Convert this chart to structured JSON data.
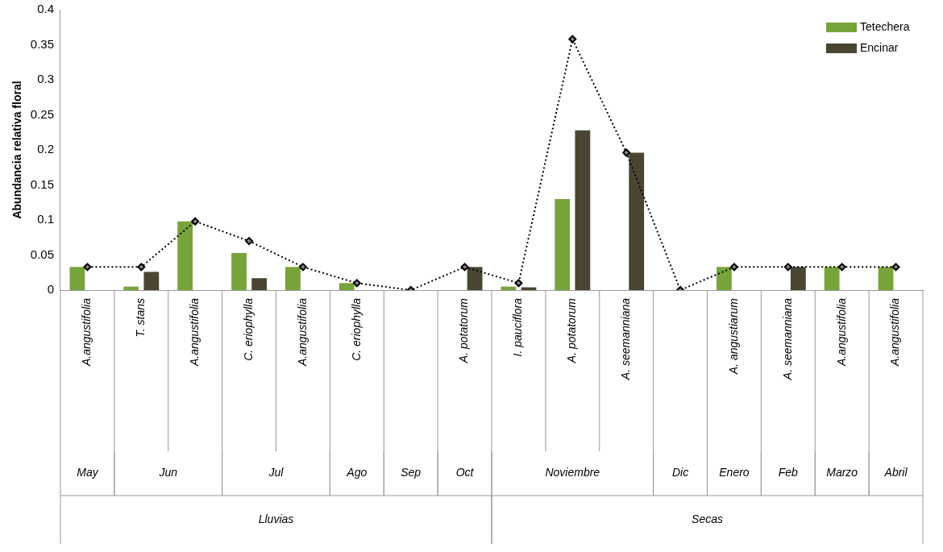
{
  "chart_data": {
    "type": "bar",
    "ylabel": "Abundancia relativa floral",
    "categories": [
      "A.angustifolia",
      "T. stans",
      "A.angustifolia",
      "C. eriophylla",
      "A.angustifolia",
      "C. eriophylla",
      null,
      "A. potatorum",
      "I. pauciflora",
      "A. potatorum",
      "A. seemanniana",
      null,
      "A. angustiarum",
      "A. seemanniana",
      "A.angustifolia",
      "A.angustifolia"
    ],
    "series": [
      {
        "name": "Tetechera",
        "color": "#77a33b",
        "values": [
          0.033,
          0.005,
          0.098,
          0.053,
          0.033,
          0.01,
          null,
          null,
          0.005,
          0.13,
          null,
          null,
          0.033,
          null,
          0.033,
          0.033
        ]
      },
      {
        "name": "Encinar",
        "color": "#4a4533",
        "values": [
          null,
          0.026,
          null,
          0.017,
          null,
          null,
          null,
          0.033,
          0.004,
          0.228,
          0.196,
          null,
          null,
          0.033,
          null,
          null
        ]
      },
      {
        "type": "line",
        "color": "#000000",
        "marker": "diamond",
        "line_style": "dotted",
        "values": [
          0.033,
          0.033,
          0.098,
          0.07,
          0.033,
          0.01,
          0,
          0.033,
          0.01,
          0.358,
          0.196,
          0,
          0.033,
          0.033,
          0.033,
          0.033
        ]
      }
    ],
    "ylim": [
      0,
      0.4
    ],
    "yticks": [
      0,
      0.05,
      0.1,
      0.15,
      0.2,
      0.25,
      0.3,
      0.35,
      0.4
    ],
    "grid": false,
    "legend": "top right",
    "annotations": [
      "May",
      "Jun",
      "Jul",
      "Ago",
      "Sep",
      "Oct",
      "Noviembre",
      "Dic",
      "Enero",
      "Feb",
      "Marzo",
      "Abril",
      "Lluvias",
      "Secas"
    ]
  }
}
